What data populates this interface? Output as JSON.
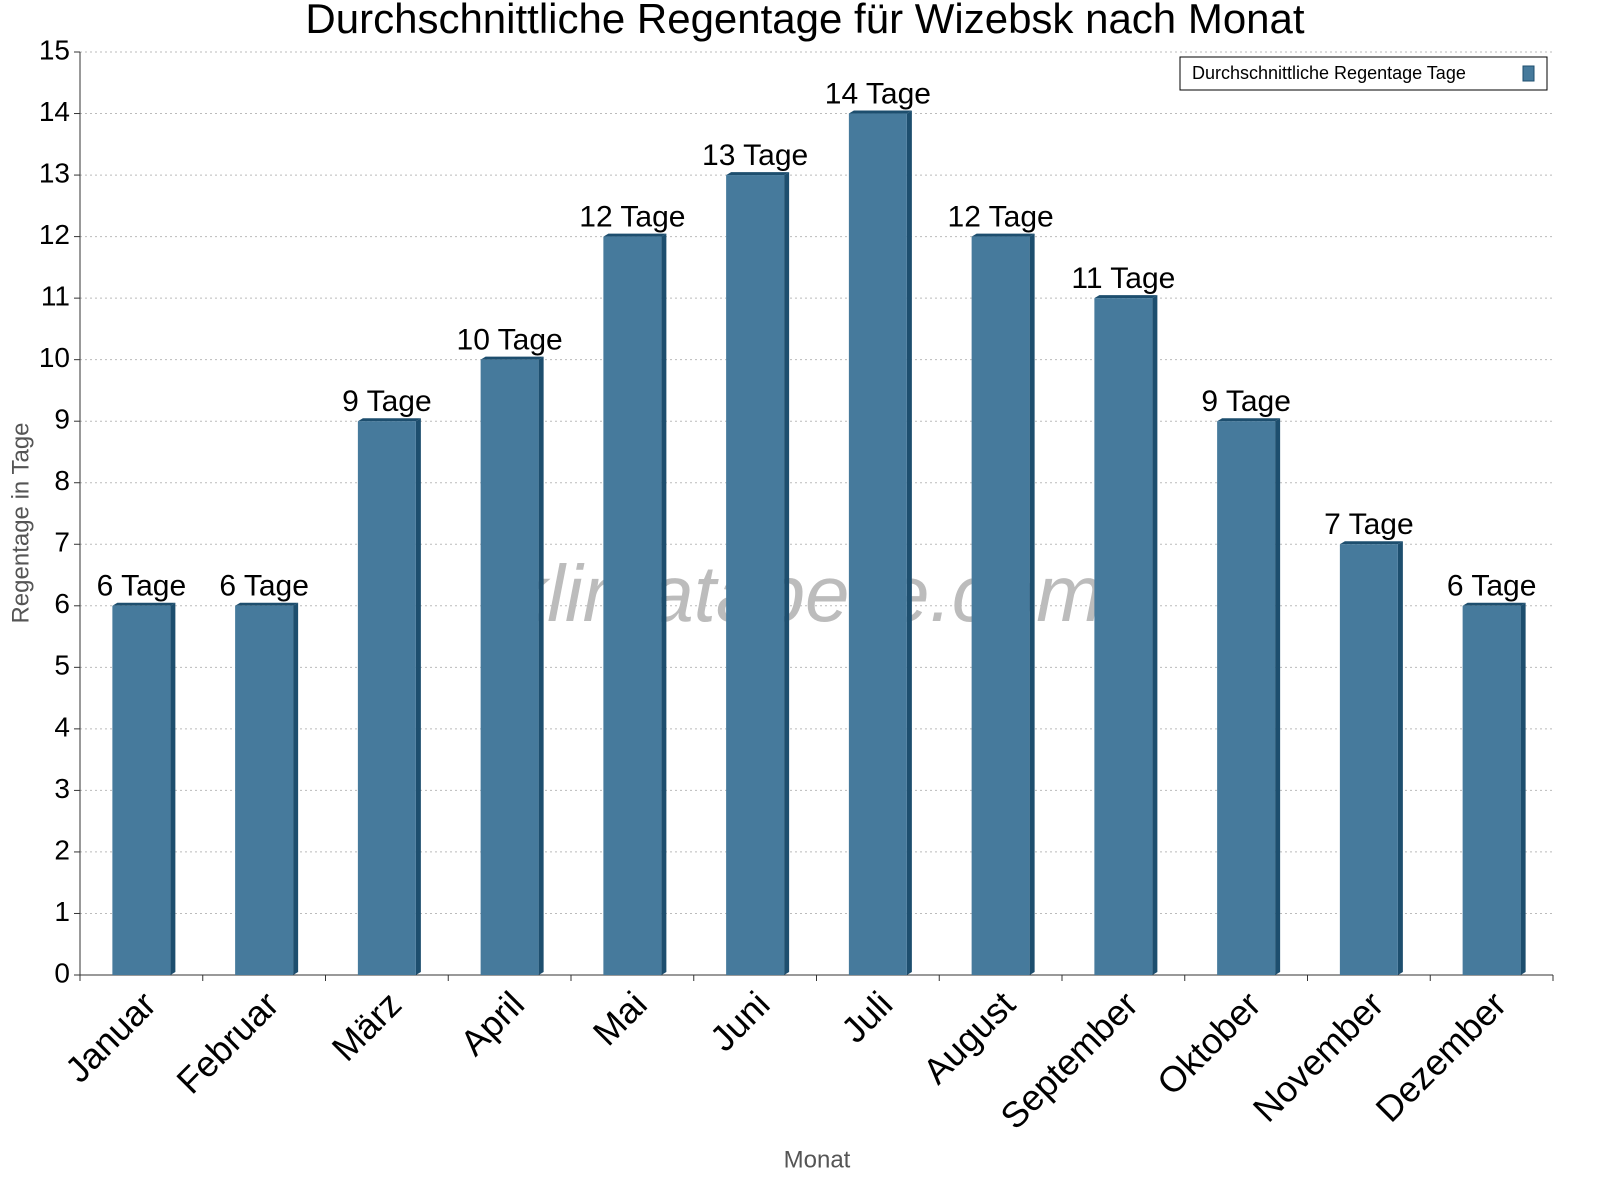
{
  "chart_data": {
    "type": "bar",
    "title": "Durchschnittliche Regentage für Wizebsk nach Monat",
    "xlabel": "Monat",
    "ylabel": "Regentage in Tage",
    "watermark": "klimatabelle.com",
    "categories": [
      "Januar",
      "Februar",
      "März",
      "April",
      "Mai",
      "Juni",
      "Juli",
      "August",
      "September",
      "Oktober",
      "November",
      "Dezember"
    ],
    "series": [
      {
        "name": "Durchschnittliche Regentage Tage",
        "color": "#467a9c",
        "values": [
          6,
          6,
          9,
          10,
          12,
          13,
          14,
          12,
          11,
          9,
          7,
          6
        ],
        "value_labels": [
          "6 Tage",
          "6 Tage",
          "9 Tage",
          "10 Tage",
          "12 Tage",
          "13 Tage",
          "14 Tage",
          "12 Tage",
          "11 Tage",
          "9 Tage",
          "7 Tage",
          "6 Tage"
        ]
      }
    ],
    "ylim": [
      0,
      15
    ],
    "yticks": [
      0,
      1,
      2,
      3,
      4,
      5,
      6,
      7,
      8,
      9,
      10,
      11,
      12,
      13,
      14,
      15
    ],
    "grid": true,
    "legend": "top-right"
  }
}
